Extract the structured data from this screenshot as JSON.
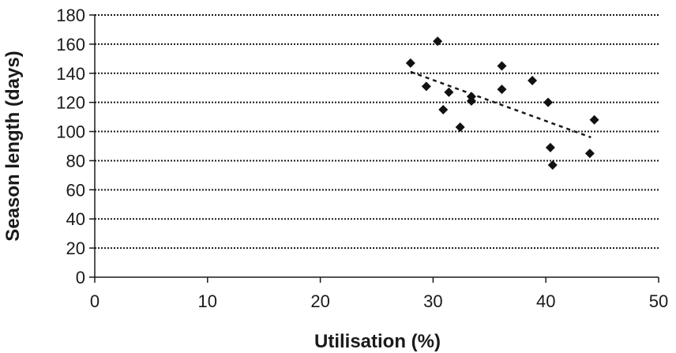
{
  "chart_data": {
    "type": "scatter",
    "xlabel": "Utilisation (%)",
    "ylabel": "Season length (days)",
    "xlim": [
      0,
      50
    ],
    "ylim": [
      0,
      180
    ],
    "xticks": [
      0,
      10,
      20,
      30,
      40,
      50
    ],
    "yticks": [
      0,
      20,
      40,
      60,
      80,
      100,
      120,
      140,
      160,
      180
    ],
    "x_tick_labels": [
      "0",
      "10",
      "20",
      "30",
      "40",
      "50"
    ],
    "y_tick_labels": [
      "0",
      "20",
      "40",
      "60",
      "80",
      "100",
      "120",
      "140",
      "160",
      "180"
    ],
    "grid": "horizontal dotted",
    "legend": "none",
    "series": [
      {
        "points": [
          {
            "x": 28.0,
            "y": 147
          },
          {
            "x": 29.4,
            "y": 131
          },
          {
            "x": 30.4,
            "y": 162
          },
          {
            "x": 30.9,
            "y": 115
          },
          {
            "x": 31.4,
            "y": 127
          },
          {
            "x": 32.4,
            "y": 103
          },
          {
            "x": 33.4,
            "y": 124
          },
          {
            "x": 33.4,
            "y": 121
          },
          {
            "x": 36.1,
            "y": 145
          },
          {
            "x": 36.1,
            "y": 129
          },
          {
            "x": 38.8,
            "y": 135
          },
          {
            "x": 40.2,
            "y": 120
          },
          {
            "x": 40.4,
            "y": 89
          },
          {
            "x": 40.6,
            "y": 77
          },
          {
            "x": 43.9,
            "y": 85
          },
          {
            "x": 44.3,
            "y": 108
          }
        ]
      }
    ],
    "trendline": {
      "style": "dotted",
      "x": [
        28.0,
        44.0
      ],
      "y": [
        141,
        96
      ]
    },
    "colors": {
      "marker": "#111111",
      "axis": "#1a1a1a",
      "grid": "#1a1a1a"
    }
  }
}
